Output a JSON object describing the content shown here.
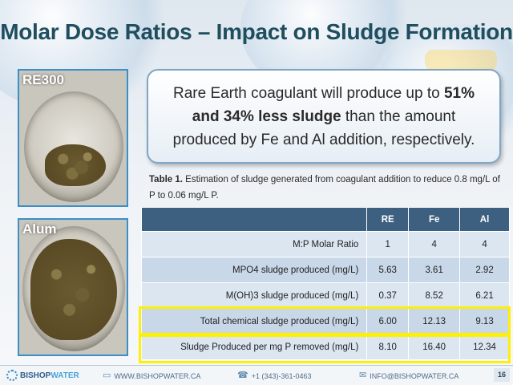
{
  "slide": {
    "title": "Molar Dose Ratios – Impact on Sludge Formation",
    "page_number": "16"
  },
  "photos": [
    {
      "label": "RE300"
    },
    {
      "label": "Alum"
    }
  ],
  "callout": {
    "text_1": "Rare Earth coagulant will produce up to ",
    "bold_1": "51%",
    "bold_2": "and 34% less sludge",
    "text_2": " than the amount produced by Fe and Al addition, respectively."
  },
  "caption": {
    "label": "Table 1.",
    "text": " Estimation of sludge generated from coagulant addition to reduce 0.8 mg/L of P to 0.06 mg/L P."
  },
  "table": {
    "headers": [
      "",
      "RE",
      "Fe",
      "Al"
    ],
    "rows": [
      [
        "M:P Molar Ratio",
        "1",
        "4",
        "4"
      ],
      [
        "MPO4 sludge produced  (mg/L)",
        "5.63",
        "3.61",
        "2.92"
      ],
      [
        "M(OH)3 sludge produced  (mg/L)",
        "0.37",
        "8.52",
        "6.21"
      ],
      [
        "Total chemical sludge produced  (mg/L)",
        "6.00",
        "12.13",
        "9.13"
      ],
      [
        "Sludge Produced per mg P removed (mg/L)",
        "8.10",
        "16.40",
        "12.34"
      ]
    ],
    "highlight_color": "#ffef00",
    "header_color": "#3d5f80"
  },
  "footer": {
    "logo_part1": "BISHOP",
    "logo_part2": "WATER",
    "website": "WWW.BISHOPWATER.CA",
    "phone": "+1 (343)-361-0463",
    "email": "INFO@BISHOPWATER.CA",
    "icons": [
      "monitor-icon",
      "phone-icon",
      "envelope-icon"
    ]
  },
  "colors": {
    "title": "#1f4e5f",
    "photo_border": "#3d8fc6",
    "accent": "#4aa3d8"
  }
}
